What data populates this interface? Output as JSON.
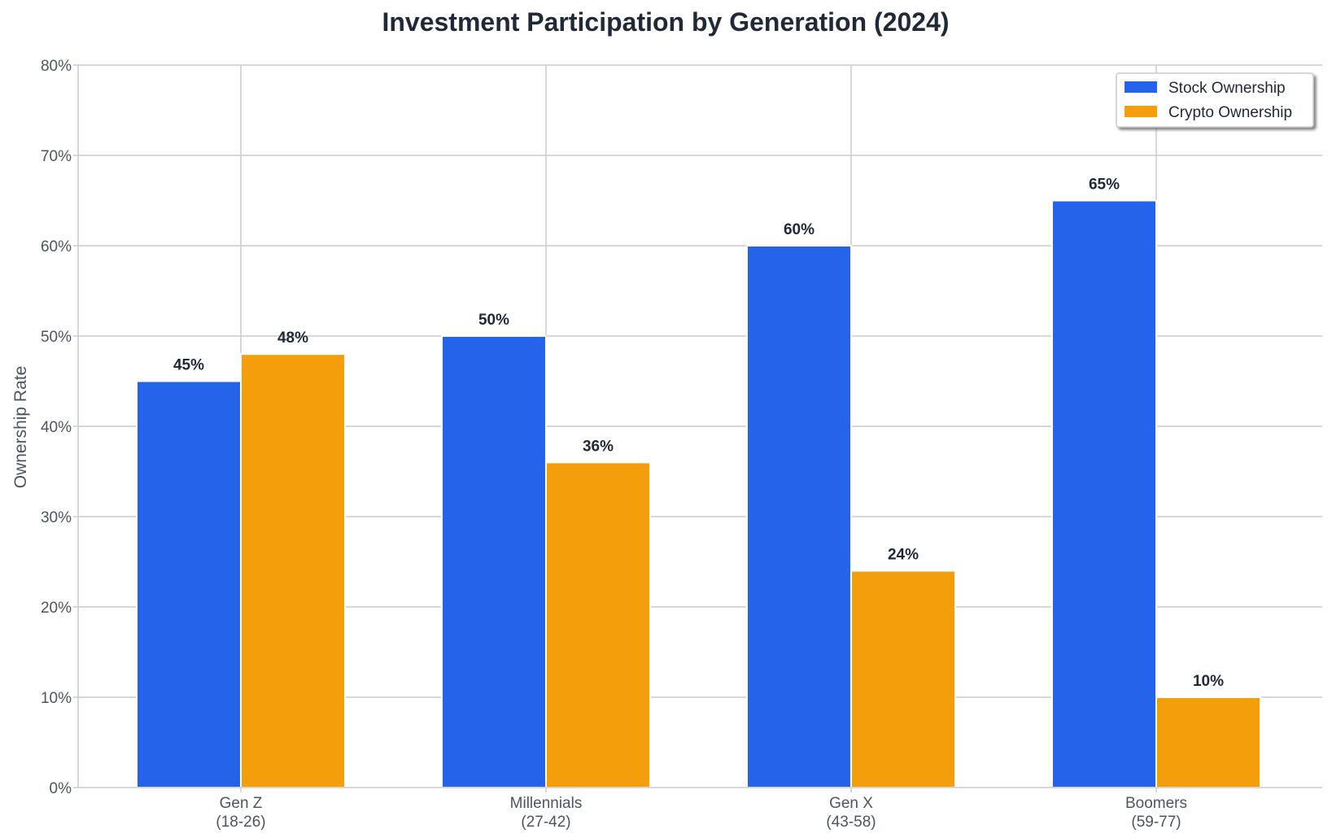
{
  "chart_data": {
    "type": "bar",
    "title": "Investment Participation by Generation (2024)",
    "xlabel": "",
    "ylabel": "Ownership Rate",
    "ylim": [
      0,
      80
    ],
    "yticks": [
      "0%",
      "10%",
      "20%",
      "30%",
      "40%",
      "50%",
      "60%",
      "70%",
      "80%"
    ],
    "categories": [
      {
        "name": "Gen Z",
        "range": "(18-26)"
      },
      {
        "name": "Millennials",
        "range": "(27-42)"
      },
      {
        "name": "Gen X",
        "range": "(43-58)"
      },
      {
        "name": "Boomers",
        "range": "(59-77)"
      }
    ],
    "series": [
      {
        "name": "Stock Ownership",
        "color": "#2563eb",
        "values": [
          45,
          50,
          60,
          65
        ],
        "labels": [
          "45%",
          "50%",
          "60%",
          "65%"
        ]
      },
      {
        "name": "Crypto Ownership",
        "color": "#f59e0b",
        "values": [
          48,
          36,
          24,
          10
        ],
        "labels": [
          "48%",
          "36%",
          "24%",
          "10%"
        ]
      }
    ],
    "grid": true,
    "legend_position": "top-right"
  }
}
